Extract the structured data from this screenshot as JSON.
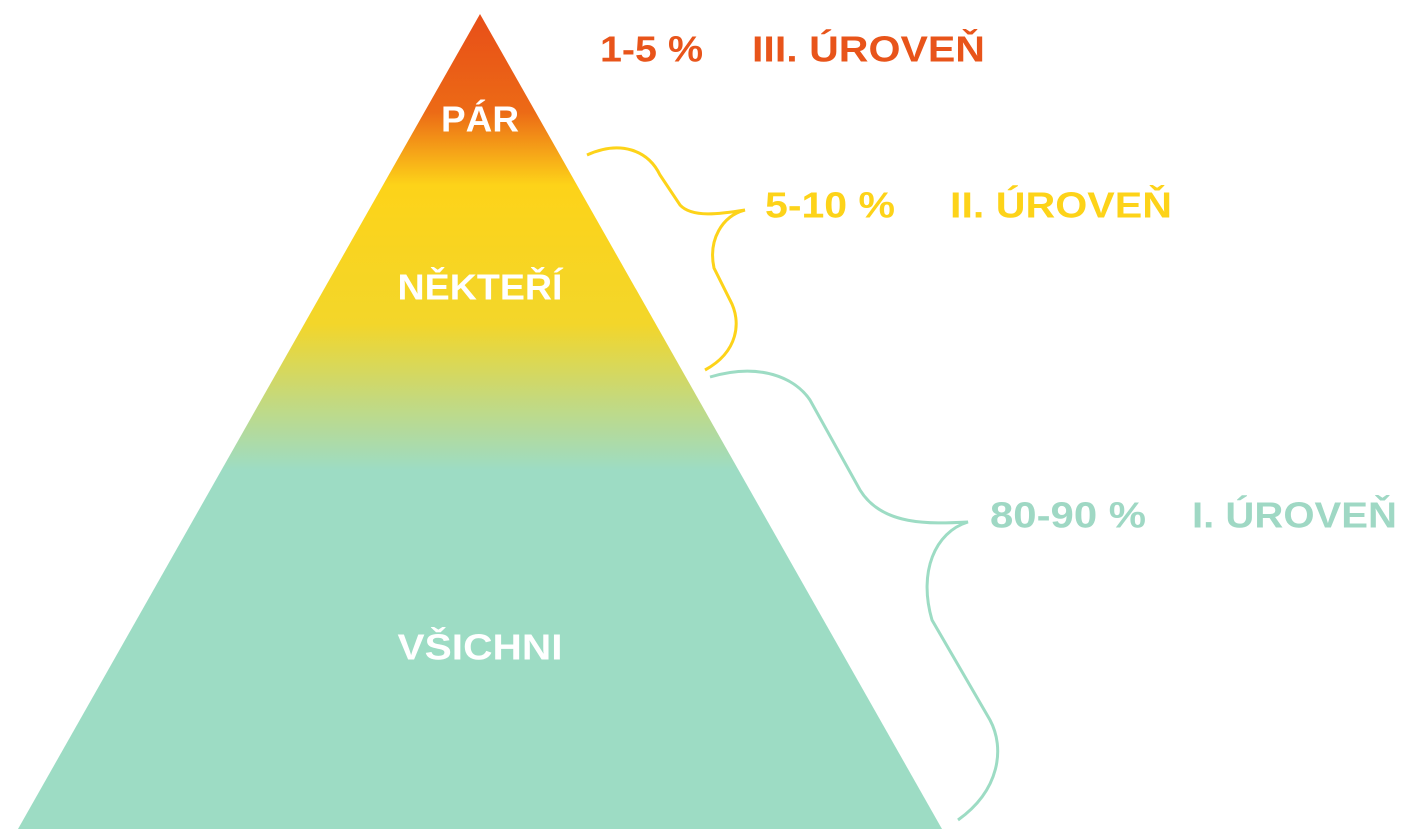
{
  "levels": [
    {
      "label": "PÁR",
      "share": "1-5 %",
      "level": "III. ÚROVEŇ"
    },
    {
      "label": "NĚKTEŘÍ",
      "share": "5-10 %",
      "level": "II. ÚROVEŇ"
    },
    {
      "label": "VŠICHNI",
      "share": "80-90 %",
      "level": "I. ÚROVEŇ"
    }
  ]
}
